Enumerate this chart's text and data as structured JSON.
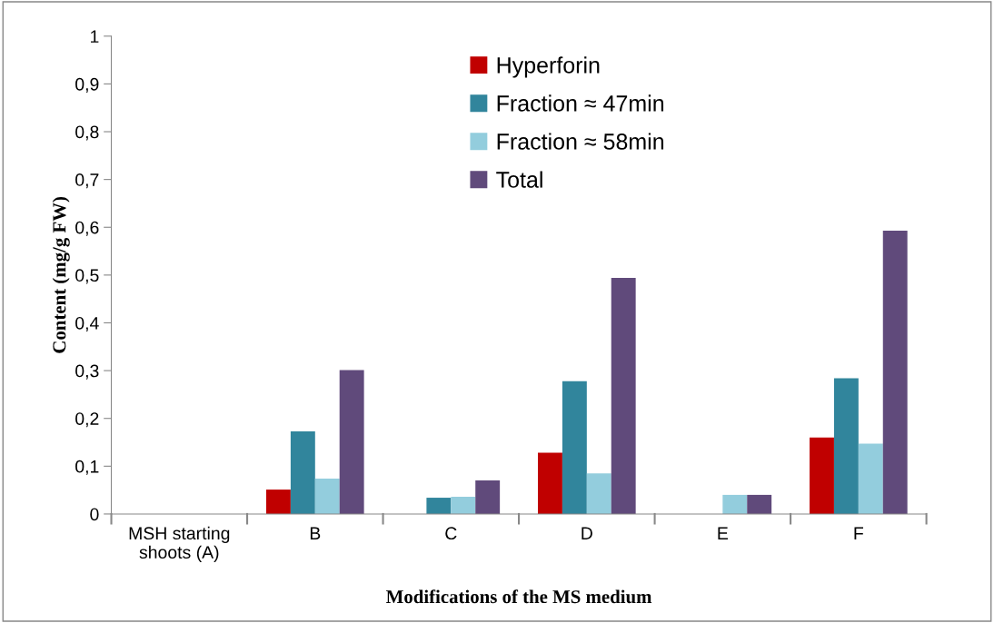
{
  "chart_data": {
    "type": "bar",
    "xlabel": "Modifications of the MS medium",
    "ylabel": "Content (mg/g FW)",
    "categories": [
      "MSH starting\nshoots (A)",
      "B",
      "C",
      "D",
      "E",
      "F"
    ],
    "series": [
      {
        "name": "Hyperforin",
        "color": "#c00000",
        "values": [
          0,
          0.051,
          0,
          0.128,
          0,
          0.16
        ]
      },
      {
        "name": "Fraction ≈ 47min",
        "color": "#31859c",
        "values": [
          0,
          0.173,
          0.034,
          0.278,
          0,
          0.284
        ]
      },
      {
        "name": "Fraction ≈ 58min",
        "color": "#93cddd",
        "values": [
          0,
          0.074,
          0.036,
          0.085,
          0.04,
          0.147
        ]
      },
      {
        "name": "Total",
        "color": "#604a7b",
        "values": [
          0,
          0.301,
          0.07,
          0.494,
          0.04,
          0.593
        ]
      }
    ],
    "ylim": [
      0,
      1
    ],
    "yticks": [
      0,
      {
        "value": 0.1,
        "label": "0,1"
      },
      {
        "value": 0.2,
        "label": "0,2"
      },
      {
        "value": 0.3,
        "label": "0,3"
      },
      {
        "value": 0.4,
        "label": "0,4"
      },
      {
        "value": 0.5,
        "label": "0,5"
      },
      {
        "value": 0.6,
        "label": "0,6"
      },
      {
        "value": 0.7,
        "label": "0,7"
      },
      {
        "value": 0.8,
        "label": "0,8"
      },
      {
        "value": 0.9,
        "label": "0,9"
      },
      1
    ],
    "grid": false,
    "legend": "top"
  }
}
